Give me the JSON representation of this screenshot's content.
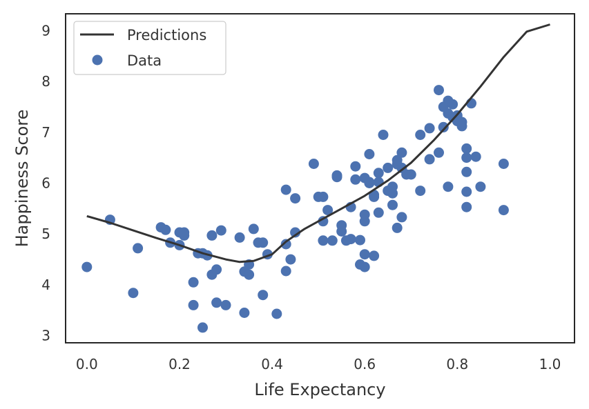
{
  "chart_data": {
    "type": "scatter",
    "xlabel": "Life Expectancy",
    "ylabel": "Happiness Score",
    "xlim": [
      -0.046,
      1.053
    ],
    "ylim": [
      2.86,
      9.33
    ],
    "x_ticks": [
      0.0,
      0.2,
      0.4,
      0.6,
      0.8,
      1.0
    ],
    "x_tick_labels": [
      "0.0",
      "0.2",
      "0.4",
      "0.6",
      "0.8",
      "1.0"
    ],
    "y_ticks": [
      3,
      4,
      5,
      6,
      7,
      8,
      9
    ],
    "y_tick_labels": [
      "3",
      "4",
      "5",
      "6",
      "7",
      "8",
      "9"
    ],
    "grid": false,
    "legend": {
      "placement": "top-left",
      "entries": [
        {
          "label": "Predictions",
          "kind": "line",
          "color": "#333333"
        },
        {
          "label": "Data",
          "kind": "marker",
          "color": "#4c72b0"
        }
      ]
    },
    "series": [
      {
        "name": "Predictions",
        "type": "line",
        "color": "#333333",
        "x": [
          0.0,
          0.05,
          0.1,
          0.15,
          0.2,
          0.25,
          0.3,
          0.33,
          0.36,
          0.4,
          0.43,
          0.47,
          0.5,
          0.55,
          0.6,
          0.65,
          0.7,
          0.75,
          0.8,
          0.85,
          0.9,
          0.95,
          1.0
        ],
        "y": [
          5.35,
          5.22,
          5.07,
          4.92,
          4.78,
          4.62,
          4.5,
          4.45,
          4.47,
          4.6,
          4.85,
          5.1,
          5.25,
          5.5,
          5.75,
          6.05,
          6.4,
          6.85,
          7.35,
          7.9,
          8.48,
          8.98,
          9.12
        ]
      },
      {
        "name": "Data",
        "type": "scatter",
        "color": "#4c72b0",
        "points": [
          [
            0.0,
            4.35
          ],
          [
            0.05,
            5.28
          ],
          [
            0.1,
            3.84
          ],
          [
            0.11,
            4.72
          ],
          [
            0.16,
            5.13
          ],
          [
            0.17,
            5.08
          ],
          [
            0.18,
            4.83
          ],
          [
            0.2,
            5.03
          ],
          [
            0.2,
            4.78
          ],
          [
            0.21,
            5.03
          ],
          [
            0.21,
            4.97
          ],
          [
            0.23,
            4.05
          ],
          [
            0.23,
            3.6
          ],
          [
            0.24,
            4.62
          ],
          [
            0.25,
            3.16
          ],
          [
            0.25,
            4.62
          ],
          [
            0.26,
            4.58
          ],
          [
            0.27,
            4.97
          ],
          [
            0.27,
            4.2
          ],
          [
            0.28,
            4.3
          ],
          [
            0.28,
            3.65
          ],
          [
            0.29,
            5.07
          ],
          [
            0.3,
            3.6
          ],
          [
            0.33,
            4.93
          ],
          [
            0.34,
            4.26
          ],
          [
            0.34,
            3.45
          ],
          [
            0.35,
            4.4
          ],
          [
            0.35,
            4.2
          ],
          [
            0.36,
            5.1
          ],
          [
            0.37,
            4.83
          ],
          [
            0.38,
            4.83
          ],
          [
            0.38,
            3.8
          ],
          [
            0.39,
            4.6
          ],
          [
            0.41,
            3.43
          ],
          [
            0.43,
            5.87
          ],
          [
            0.43,
            4.27
          ],
          [
            0.43,
            4.8
          ],
          [
            0.44,
            4.5
          ],
          [
            0.45,
            5.7
          ],
          [
            0.45,
            5.03
          ],
          [
            0.49,
            6.38
          ],
          [
            0.5,
            5.73
          ],
          [
            0.51,
            5.73
          ],
          [
            0.51,
            5.25
          ],
          [
            0.51,
            4.87
          ],
          [
            0.52,
            5.47
          ],
          [
            0.53,
            4.87
          ],
          [
            0.54,
            6.15
          ],
          [
            0.54,
            6.12
          ],
          [
            0.55,
            5.05
          ],
          [
            0.55,
            5.17
          ],
          [
            0.56,
            4.87
          ],
          [
            0.57,
            4.9
          ],
          [
            0.57,
            5.53
          ],
          [
            0.58,
            6.07
          ],
          [
            0.58,
            6.33
          ],
          [
            0.59,
            4.88
          ],
          [
            0.59,
            4.4
          ],
          [
            0.6,
            6.1
          ],
          [
            0.6,
            5.25
          ],
          [
            0.6,
            5.38
          ],
          [
            0.6,
            4.6
          ],
          [
            0.6,
            4.35
          ],
          [
            0.61,
            6.57
          ],
          [
            0.61,
            6.02
          ],
          [
            0.61,
            6.0
          ],
          [
            0.62,
            4.57
          ],
          [
            0.62,
            5.77
          ],
          [
            0.62,
            5.73
          ],
          [
            0.63,
            6.2
          ],
          [
            0.63,
            6.02
          ],
          [
            0.63,
            5.42
          ],
          [
            0.64,
            6.95
          ],
          [
            0.65,
            6.3
          ],
          [
            0.65,
            5.85
          ],
          [
            0.66,
            5.57
          ],
          [
            0.66,
            5.8
          ],
          [
            0.66,
            5.93
          ],
          [
            0.67,
            6.45
          ],
          [
            0.67,
            6.37
          ],
          [
            0.67,
            5.12
          ],
          [
            0.68,
            6.3
          ],
          [
            0.68,
            6.6
          ],
          [
            0.68,
            5.33
          ],
          [
            0.69,
            6.17
          ],
          [
            0.7,
            6.17
          ],
          [
            0.72,
            6.95
          ],
          [
            0.72,
            5.85
          ],
          [
            0.74,
            7.08
          ],
          [
            0.74,
            6.47
          ],
          [
            0.76,
            7.83
          ],
          [
            0.76,
            6.6
          ],
          [
            0.77,
            7.5
          ],
          [
            0.77,
            7.1
          ],
          [
            0.77,
            7.1
          ],
          [
            0.78,
            7.62
          ],
          [
            0.78,
            7.37
          ],
          [
            0.78,
            5.93
          ],
          [
            0.79,
            7.55
          ],
          [
            0.79,
            7.3
          ],
          [
            0.8,
            7.33
          ],
          [
            0.8,
            7.27
          ],
          [
            0.8,
            7.22
          ],
          [
            0.81,
            7.2
          ],
          [
            0.81,
            7.12
          ],
          [
            0.82,
            6.5
          ],
          [
            0.82,
            6.22
          ],
          [
            0.82,
            5.83
          ],
          [
            0.82,
            5.53
          ],
          [
            0.82,
            6.68
          ],
          [
            0.83,
            7.57
          ],
          [
            0.84,
            6.52
          ],
          [
            0.85,
            5.93
          ],
          [
            0.9,
            6.38
          ],
          [
            0.9,
            5.47
          ]
        ]
      }
    ]
  }
}
